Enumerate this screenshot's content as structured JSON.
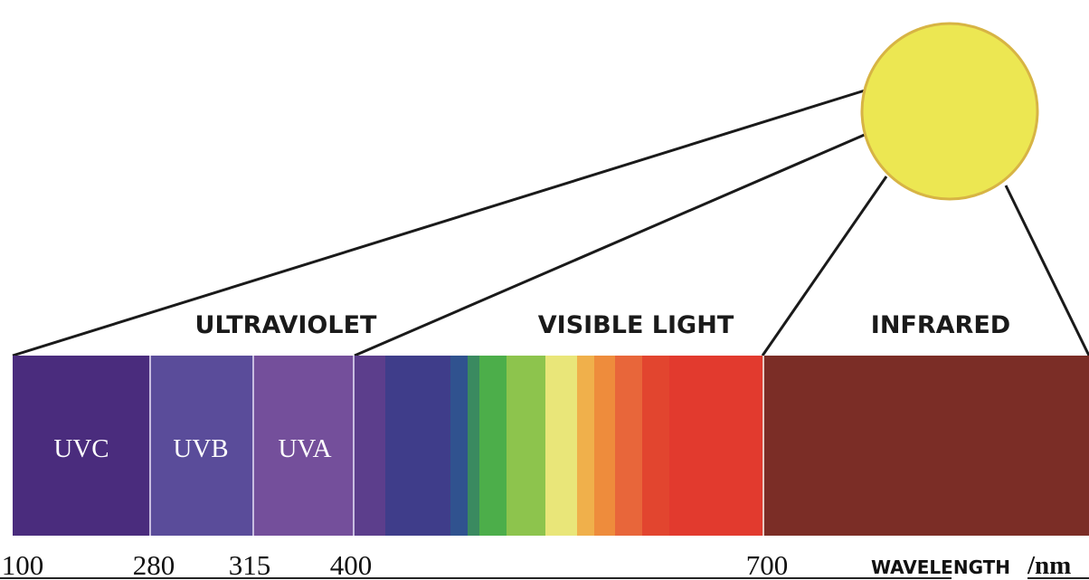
{
  "regions": {
    "ultraviolet": "ULTRAVIOLET",
    "visible": "VISIBLE LIGHT",
    "infrared": "INFRARED"
  },
  "bands": [
    "UVC",
    "UVB",
    "UVA"
  ],
  "wavelengths": [
    "100",
    "280",
    "315",
    "400",
    "700"
  ],
  "axis": {
    "label": "WAVELENGTH",
    "unit": "/nm"
  }
}
